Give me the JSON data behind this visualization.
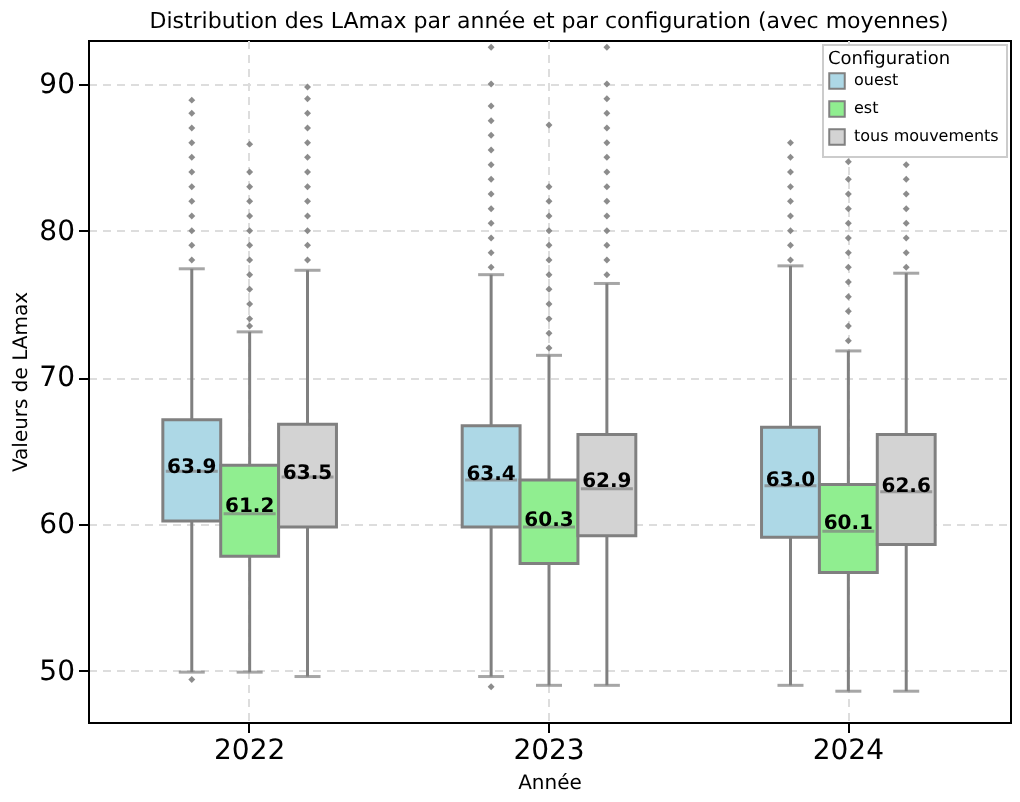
{
  "chart_data": {
    "type": "box",
    "title": "Distribution des LAmax par année et par configuration (avec moyennes)",
    "xlabel": "Année",
    "ylabel": "Valeurs de LAmax",
    "legend_title": "Configuration",
    "categories": [
      "2022",
      "2023",
      "2024"
    ],
    "ylim": [
      46.5,
      93
    ],
    "yticks": [
      50,
      60,
      70,
      80,
      90
    ],
    "grid": true,
    "legend": "top right",
    "annotations": [
      {
        "text": "63.9",
        "x": "2022",
        "y": 63.9
      },
      {
        "text": "63.4",
        "x": "2023",
        "y": 63.4
      },
      {
        "text": "63.0",
        "x": "2024",
        "y": 63.0
      },
      {
        "text": "61.2",
        "x": "2022",
        "y": 61.2
      },
      {
        "text": "60.3",
        "x": "2023",
        "y": 60.3
      },
      {
        "text": "60.1",
        "x": "2024",
        "y": 60.1
      },
      {
        "text": "63.5",
        "x": "2022",
        "y": 63.5
      },
      {
        "text": "62.9",
        "x": "2023",
        "y": 62.9
      },
      {
        "text": "62.6",
        "x": "2024",
        "y": 62.6
      }
    ],
    "series": [
      {
        "name": "ouest",
        "color": "#add8e6",
        "boxes": [
          {
            "low": 49.9,
            "q1": 60.2,
            "median": 63.6,
            "q3": 67.1,
            "high": 77.4,
            "outliers": [
              78,
              79,
              80,
              81,
              82,
              83,
              84,
              85,
              86,
              87,
              88,
              88.9,
              49.4
            ]
          },
          {
            "low": 49.6,
            "q1": 59.8,
            "median": 63.0,
            "q3": 66.7,
            "high": 77.0,
            "outliers": [
              77.5,
              78.5,
              79.5,
              80.5,
              81.5,
              82.5,
              83.5,
              84.5,
              85.5,
              86.5,
              87.5,
              88.5,
              90,
              92.5,
              48.9
            ]
          },
          {
            "low": 49.0,
            "q1": 59.1,
            "median": 62.6,
            "q3": 66.6,
            "high": 77.6,
            "outliers": [
              78,
              79,
              80,
              81,
              82,
              83,
              84,
              85,
              86
            ]
          }
        ]
      },
      {
        "name": "est",
        "color": "#90ee90",
        "boxes": [
          {
            "low": 49.9,
            "q1": 57.8,
            "median": 60.7,
            "q3": 64.0,
            "high": 73.1,
            "outliers": [
              73.5,
              74,
              75,
              76,
              77,
              78,
              79,
              80,
              81,
              82,
              83,
              84,
              85.9
            ]
          },
          {
            "low": 49.0,
            "q1": 57.3,
            "median": 59.8,
            "q3": 63.0,
            "high": 71.5,
            "outliers": [
              72,
              73,
              74,
              75,
              76,
              77,
              78,
              79,
              80,
              81,
              82,
              83,
              87.2
            ]
          },
          {
            "low": 48.6,
            "q1": 56.7,
            "median": 59.5,
            "q3": 62.7,
            "high": 71.8,
            "outliers": [
              72.5,
              73.5,
              74.5,
              75.5,
              76.5,
              77.5,
              78.5,
              79.5,
              80.5,
              81.5,
              82.5,
              83.5,
              84.7
            ]
          }
        ]
      },
      {
        "name": "tous mouvements",
        "color": "#d3d3d3",
        "boxes": [
          {
            "low": 49.6,
            "q1": 59.8,
            "median": 63.2,
            "q3": 66.8,
            "high": 77.3,
            "outliers": [
              78,
              79,
              80,
              81,
              82,
              83,
              84,
              85,
              86,
              87,
              88,
              89,
              89.8
            ]
          },
          {
            "low": 49.0,
            "q1": 59.2,
            "median": 62.4,
            "q3": 66.1,
            "high": 76.4,
            "outliers": [
              77,
              78,
              79,
              80,
              81,
              82,
              83,
              84,
              85,
              86,
              87,
              88,
              89,
              90,
              92.5
            ]
          },
          {
            "low": 48.6,
            "q1": 58.6,
            "median": 62.2,
            "q3": 66.1,
            "high": 77.1,
            "outliers": [
              77.5,
              78.5,
              79.5,
              80.5,
              81.5,
              82.5,
              83.5,
              84.5
            ]
          }
        ]
      }
    ]
  }
}
